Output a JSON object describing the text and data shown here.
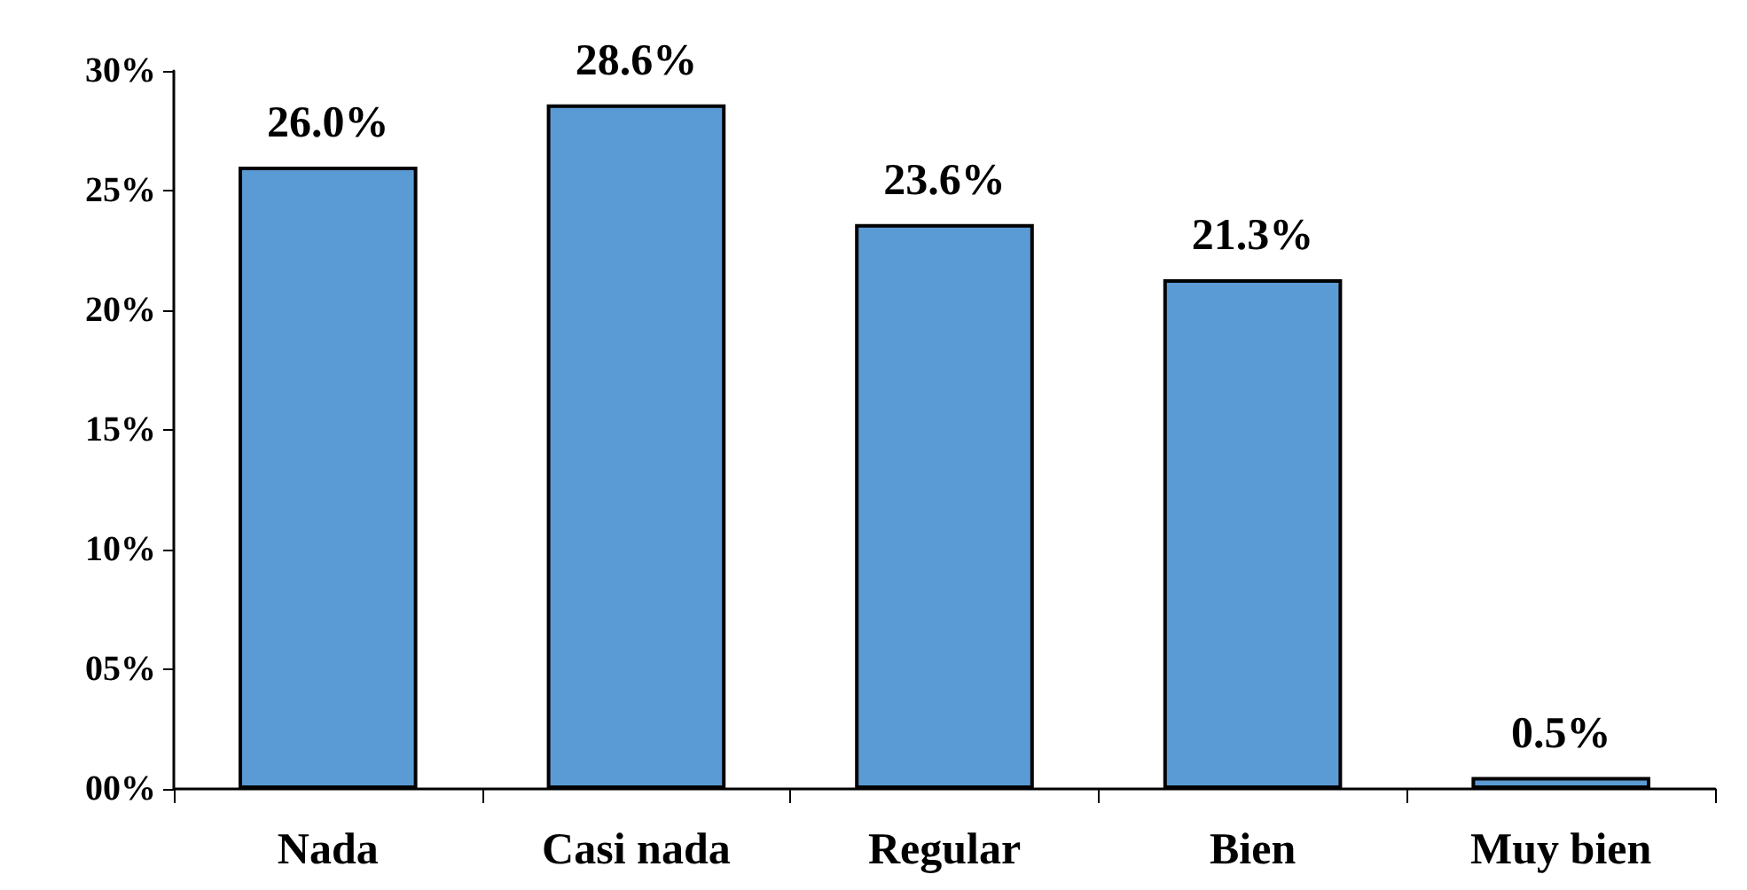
{
  "chart_data": {
    "type": "bar",
    "categories": [
      "Nada",
      "Casi nada",
      "Regular",
      "Bien",
      "Muy bien"
    ],
    "values": [
      26.0,
      28.6,
      23.6,
      21.3,
      0.5
    ],
    "value_labels": [
      "26.0%",
      "28.6%",
      "23.6%",
      "21.3%",
      "0.5%"
    ],
    "color": "#5b9bd5",
    "ylim": [
      0,
      30
    ],
    "yticks": [
      {
        "value": 0,
        "label": "00%"
      },
      {
        "value": 5,
        "label": "05%"
      },
      {
        "value": 10,
        "label": "10%"
      },
      {
        "value": 15,
        "label": "15%"
      },
      {
        "value": 20,
        "label": "20%"
      },
      {
        "value": 25,
        "label": "25%"
      },
      {
        "value": 30,
        "label": "30%"
      }
    ],
    "grid": false
  }
}
